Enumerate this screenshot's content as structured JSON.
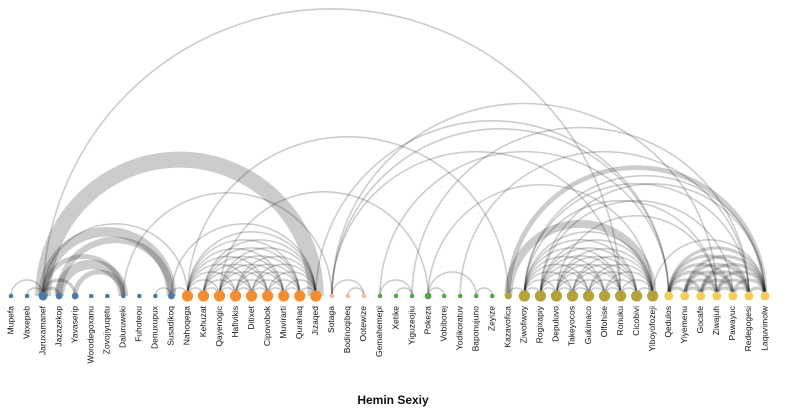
{
  "title": "Hemin Sexiy",
  "colors": {
    "group_blue": "#4e79a7",
    "group_orange": "#f28e2b",
    "group_pink": "#f4b8a8",
    "group_green": "#59a14f",
    "group_olive": "#b5a33a",
    "group_yellow": "#f1ce63",
    "link": "#000000"
  },
  "chart_data": {
    "type": "arc-diagram",
    "nodes": [
      {
        "name": "Mupefa",
        "group": "blue",
        "size": 1
      },
      {
        "name": "Vaxepeb",
        "group": "blue",
        "size": 1
      },
      {
        "name": "Jaruxamanef",
        "group": "blue",
        "size": 3
      },
      {
        "name": "Jazazekop",
        "group": "blue",
        "size": 2
      },
      {
        "name": "Yavaserip",
        "group": "blue",
        "size": 2
      },
      {
        "name": "Worodegoxanu",
        "group": "blue",
        "size": 1
      },
      {
        "name": "Zovojiyuqetu",
        "group": "blue",
        "size": 1
      },
      {
        "name": "Daluruweki",
        "group": "blue",
        "size": 1
      },
      {
        "name": "Fuhoteou",
        "group": "blue",
        "size": 1
      },
      {
        "name": "Denuxupux",
        "group": "blue",
        "size": 1
      },
      {
        "name": "Susadikoq",
        "group": "blue",
        "size": 2
      },
      {
        "name": "Nahoqega",
        "group": "orange",
        "size": 4
      },
      {
        "name": "Kehuzat",
        "group": "orange",
        "size": 4
      },
      {
        "name": "Qayenogic",
        "group": "orange",
        "size": 4
      },
      {
        "name": "Hafivikis",
        "group": "orange",
        "size": 4
      },
      {
        "name": "Ditixet",
        "group": "orange",
        "size": 4
      },
      {
        "name": "Cipovobok",
        "group": "orange",
        "size": 4
      },
      {
        "name": "Muvirarti",
        "group": "orange",
        "size": 4
      },
      {
        "name": "Qurahaq",
        "group": "orange",
        "size": 4
      },
      {
        "name": "Jizaqed",
        "group": "orange",
        "size": 4
      },
      {
        "name": "Sotaga",
        "group": "pink",
        "size": 1
      },
      {
        "name": "Bodinoqibeq",
        "group": "pink",
        "size": 1
      },
      {
        "name": "Ootewize",
        "group": "pink",
        "size": 1
      },
      {
        "name": "Gemahemepi",
        "group": "green",
        "size": 1
      },
      {
        "name": "Xetike",
        "group": "green",
        "size": 1
      },
      {
        "name": "Yiguzeojiu",
        "group": "green",
        "size": 1
      },
      {
        "name": "Pokeza",
        "group": "green",
        "size": 2
      },
      {
        "name": "Vobiborej",
        "group": "green",
        "size": 1
      },
      {
        "name": "Yodikoratuv",
        "group": "green",
        "size": 1
      },
      {
        "name": "Baponujuno",
        "group": "green",
        "size": 1
      },
      {
        "name": "Zeyize",
        "group": "green",
        "size": 1
      },
      {
        "name": "Kazavofica",
        "group": "olive",
        "size": 2
      },
      {
        "name": "Ziwofiwoy",
        "group": "olive",
        "size": 4
      },
      {
        "name": "Rogixapiy",
        "group": "olive",
        "size": 4
      },
      {
        "name": "Depuluvo",
        "group": "olive",
        "size": 4
      },
      {
        "name": "Takeyocos",
        "group": "olive",
        "size": 4
      },
      {
        "name": "Gukimaco",
        "group": "olive",
        "size": 4
      },
      {
        "name": "Olfohise",
        "group": "olive",
        "size": 4
      },
      {
        "name": "Ronuku",
        "group": "olive",
        "size": 4
      },
      {
        "name": "Cicobivi",
        "group": "olive",
        "size": 4
      },
      {
        "name": "Yiboyofozeji",
        "group": "olive",
        "size": 4
      },
      {
        "name": "Qedulos",
        "group": "yellow",
        "size": 3
      },
      {
        "name": "Yiyemenu",
        "group": "yellow",
        "size": 3
      },
      {
        "name": "Gocafe",
        "group": "yellow",
        "size": 3
      },
      {
        "name": "Ziwajuh",
        "group": "yellow",
        "size": 3
      },
      {
        "name": "Pawayuc",
        "group": "yellow",
        "size": 3
      },
      {
        "name": "Redegogesi",
        "group": "yellow",
        "size": 3
      },
      {
        "name": "Laquvimolw",
        "group": "yellow",
        "size": 3
      }
    ],
    "links": [
      {
        "source": 0,
        "target": 2,
        "value": 1
      },
      {
        "source": 1,
        "target": 2,
        "value": 1
      },
      {
        "source": 2,
        "target": 3,
        "value": 2
      },
      {
        "source": 2,
        "target": 4,
        "value": 2
      },
      {
        "source": 2,
        "target": 10,
        "value": 6
      },
      {
        "source": 2,
        "target": 7,
        "value": 3
      },
      {
        "source": 3,
        "target": 7,
        "value": 6
      },
      {
        "source": 3,
        "target": 10,
        "value": 4
      },
      {
        "source": 4,
        "target": 7,
        "value": 3
      },
      {
        "source": 2,
        "target": 11,
        "value": 1
      },
      {
        "source": 2,
        "target": 19,
        "value": 10
      },
      {
        "source": 2,
        "target": 38,
        "value": 1
      },
      {
        "source": 9,
        "target": 10,
        "value": 1
      },
      {
        "source": 10,
        "target": 11,
        "value": 1
      },
      {
        "source": 10,
        "target": 19,
        "value": 1
      },
      {
        "source": 7,
        "target": 20,
        "value": 1
      },
      {
        "source": 11,
        "target": 12,
        "value": 1
      },
      {
        "source": 11,
        "target": 13,
        "value": 1
      },
      {
        "source": 11,
        "target": 14,
        "value": 1
      },
      {
        "source": 11,
        "target": 15,
        "value": 1
      },
      {
        "source": 11,
        "target": 16,
        "value": 1
      },
      {
        "source": 11,
        "target": 17,
        "value": 1
      },
      {
        "source": 11,
        "target": 18,
        "value": 1
      },
      {
        "source": 11,
        "target": 19,
        "value": 1
      },
      {
        "source": 12,
        "target": 13,
        "value": 1
      },
      {
        "source": 12,
        "target": 14,
        "value": 1
      },
      {
        "source": 12,
        "target": 15,
        "value": 1
      },
      {
        "source": 12,
        "target": 16,
        "value": 1
      },
      {
        "source": 12,
        "target": 17,
        "value": 1
      },
      {
        "source": 12,
        "target": 18,
        "value": 1
      },
      {
        "source": 12,
        "target": 19,
        "value": 1
      },
      {
        "source": 13,
        "target": 14,
        "value": 1
      },
      {
        "source": 13,
        "target": 15,
        "value": 1
      },
      {
        "source": 13,
        "target": 16,
        "value": 1
      },
      {
        "source": 13,
        "target": 17,
        "value": 1
      },
      {
        "source": 13,
        "target": 18,
        "value": 1
      },
      {
        "source": 13,
        "target": 19,
        "value": 1
      },
      {
        "source": 14,
        "target": 15,
        "value": 1
      },
      {
        "source": 14,
        "target": 16,
        "value": 1
      },
      {
        "source": 14,
        "target": 17,
        "value": 1
      },
      {
        "source": 14,
        "target": 18,
        "value": 1
      },
      {
        "source": 14,
        "target": 19,
        "value": 1
      },
      {
        "source": 15,
        "target": 16,
        "value": 1
      },
      {
        "source": 15,
        "target": 17,
        "value": 1
      },
      {
        "source": 15,
        "target": 18,
        "value": 1
      },
      {
        "source": 15,
        "target": 19,
        "value": 1
      },
      {
        "source": 16,
        "target": 17,
        "value": 1
      },
      {
        "source": 16,
        "target": 18,
        "value": 1
      },
      {
        "source": 16,
        "target": 19,
        "value": 1
      },
      {
        "source": 17,
        "target": 18,
        "value": 1
      },
      {
        "source": 17,
        "target": 19,
        "value": 1
      },
      {
        "source": 18,
        "target": 19,
        "value": 1
      },
      {
        "source": 11,
        "target": 31,
        "value": 1
      },
      {
        "source": 13,
        "target": 26,
        "value": 1
      },
      {
        "source": 19,
        "target": 41,
        "value": 1
      },
      {
        "source": 20,
        "target": 22,
        "value": 1
      },
      {
        "source": 20,
        "target": 38,
        "value": 1
      },
      {
        "source": 20,
        "target": 41,
        "value": 1
      },
      {
        "source": 20,
        "target": 44,
        "value": 1
      },
      {
        "source": 21,
        "target": 22,
        "value": 1
      },
      {
        "source": 23,
        "target": 25,
        "value": 1
      },
      {
        "source": 24,
        "target": 25,
        "value": 1
      },
      {
        "source": 23,
        "target": 41,
        "value": 1
      },
      {
        "source": 25,
        "target": 46,
        "value": 1
      },
      {
        "source": 26,
        "target": 27,
        "value": 1
      },
      {
        "source": 26,
        "target": 29,
        "value": 1
      },
      {
        "source": 26,
        "target": 40,
        "value": 1
      },
      {
        "source": 28,
        "target": 46,
        "value": 1
      },
      {
        "source": 29,
        "target": 30,
        "value": 1
      },
      {
        "source": 31,
        "target": 32,
        "value": 1
      },
      {
        "source": 31,
        "target": 40,
        "value": 5
      },
      {
        "source": 32,
        "target": 33,
        "value": 1
      },
      {
        "source": 32,
        "target": 34,
        "value": 1
      },
      {
        "source": 32,
        "target": 35,
        "value": 1
      },
      {
        "source": 32,
        "target": 36,
        "value": 1
      },
      {
        "source": 32,
        "target": 37,
        "value": 1
      },
      {
        "source": 32,
        "target": 38,
        "value": 1
      },
      {
        "source": 32,
        "target": 39,
        "value": 1
      },
      {
        "source": 32,
        "target": 40,
        "value": 1
      },
      {
        "source": 33,
        "target": 34,
        "value": 1
      },
      {
        "source": 33,
        "target": 35,
        "value": 1
      },
      {
        "source": 33,
        "target": 36,
        "value": 1
      },
      {
        "source": 33,
        "target": 37,
        "value": 1
      },
      {
        "source": 33,
        "target": 38,
        "value": 1
      },
      {
        "source": 33,
        "target": 39,
        "value": 1
      },
      {
        "source": 33,
        "target": 40,
        "value": 1
      },
      {
        "source": 34,
        "target": 35,
        "value": 1
      },
      {
        "source": 34,
        "target": 36,
        "value": 1
      },
      {
        "source": 34,
        "target": 37,
        "value": 1
      },
      {
        "source": 34,
        "target": 38,
        "value": 1
      },
      {
        "source": 34,
        "target": 39,
        "value": 1
      },
      {
        "source": 34,
        "target": 40,
        "value": 1
      },
      {
        "source": 35,
        "target": 36,
        "value": 1
      },
      {
        "source": 35,
        "target": 37,
        "value": 1
      },
      {
        "source": 35,
        "target": 38,
        "value": 1
      },
      {
        "source": 35,
        "target": 39,
        "value": 1
      },
      {
        "source": 35,
        "target": 40,
        "value": 1
      },
      {
        "source": 36,
        "target": 37,
        "value": 1
      },
      {
        "source": 36,
        "target": 38,
        "value": 1
      },
      {
        "source": 36,
        "target": 39,
        "value": 1
      },
      {
        "source": 36,
        "target": 40,
        "value": 1
      },
      {
        "source": 37,
        "target": 38,
        "value": 1
      },
      {
        "source": 37,
        "target": 39,
        "value": 1
      },
      {
        "source": 37,
        "target": 40,
        "value": 1
      },
      {
        "source": 38,
        "target": 39,
        "value": 1
      },
      {
        "source": 38,
        "target": 40,
        "value": 1
      },
      {
        "source": 39,
        "target": 40,
        "value": 1
      },
      {
        "source": 32,
        "target": 44,
        "value": 1
      },
      {
        "source": 32,
        "target": 46,
        "value": 1
      },
      {
        "source": 32,
        "target": 47,
        "value": 1
      },
      {
        "source": 33,
        "target": 45,
        "value": 1
      },
      {
        "source": 33,
        "target": 47,
        "value": 1
      },
      {
        "source": 34,
        "target": 44,
        "value": 1
      },
      {
        "source": 31,
        "target": 47,
        "value": 3
      },
      {
        "source": 40,
        "target": 47,
        "value": 1
      },
      {
        "source": 41,
        "target": 42,
        "value": 2
      },
      {
        "source": 41,
        "target": 43,
        "value": 2
      },
      {
        "source": 41,
        "target": 44,
        "value": 2
      },
      {
        "source": 41,
        "target": 45,
        "value": 2
      },
      {
        "source": 41,
        "target": 46,
        "value": 2
      },
      {
        "source": 41,
        "target": 47,
        "value": 2
      },
      {
        "source": 42,
        "target": 43,
        "value": 2
      },
      {
        "source": 42,
        "target": 44,
        "value": 2
      },
      {
        "source": 42,
        "target": 45,
        "value": 2
      },
      {
        "source": 42,
        "target": 46,
        "value": 2
      },
      {
        "source": 42,
        "target": 47,
        "value": 2
      },
      {
        "source": 43,
        "target": 44,
        "value": 2
      },
      {
        "source": 43,
        "target": 45,
        "value": 2
      },
      {
        "source": 43,
        "target": 46,
        "value": 2
      },
      {
        "source": 43,
        "target": 47,
        "value": 2
      },
      {
        "source": 44,
        "target": 45,
        "value": 2
      },
      {
        "source": 44,
        "target": 46,
        "value": 2
      },
      {
        "source": 44,
        "target": 47,
        "value": 2
      },
      {
        "source": 45,
        "target": 46,
        "value": 2
      },
      {
        "source": 45,
        "target": 47,
        "value": 2
      },
      {
        "source": 46,
        "target": 47,
        "value": 2
      }
    ]
  }
}
